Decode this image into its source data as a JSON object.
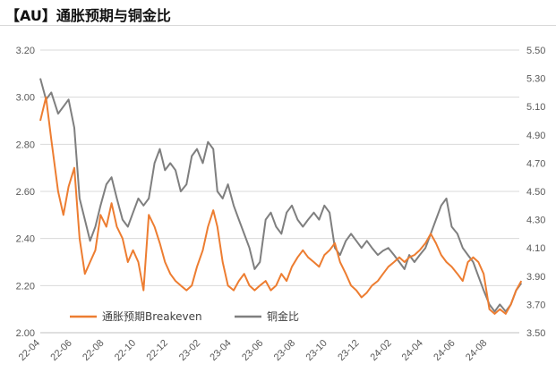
{
  "title": "【AU】通胀预期与铜金比",
  "chart_data": {
    "type": "line",
    "title": "【AU】通胀预期与铜金比",
    "xlabel": "",
    "ylabel_left": "",
    "ylabel_right": "",
    "x_ticks": [
      "22-04",
      "22-06",
      "22-08",
      "22-10",
      "22-12",
      "23-02",
      "23-04",
      "23-06",
      "23-08",
      "23-10",
      "23-12",
      "24-02",
      "24-04",
      "24-06",
      "24-08"
    ],
    "x_range": [
      "2022-04",
      "2024-10"
    ],
    "y_left_ticks": [
      "2.00",
      "2.20",
      "2.40",
      "2.60",
      "2.80",
      "3.00",
      "3.20"
    ],
    "y_left_range": [
      2.0,
      3.2
    ],
    "y_right_ticks": [
      "3.50",
      "3.70",
      "3.90",
      "4.10",
      "4.30",
      "4.50",
      "4.70",
      "4.90",
      "5.10",
      "5.30",
      "5.50"
    ],
    "y_right_range": [
      3.5,
      5.5
    ],
    "grid": "horizontal",
    "legend_position": "bottom-left",
    "series": [
      {
        "name": "通胀预期Breakeven",
        "axis": "left",
        "color": "#ed7d31",
        "points": [
          [
            "2022-04-01",
            2.9
          ],
          [
            "2022-04-12",
            3.0
          ],
          [
            "2022-04-22",
            2.82
          ],
          [
            "2022-05-05",
            2.6
          ],
          [
            "2022-05-15",
            2.5
          ],
          [
            "2022-05-25",
            2.62
          ],
          [
            "2022-06-05",
            2.7
          ],
          [
            "2022-06-15",
            2.4
          ],
          [
            "2022-06-25",
            2.25
          ],
          [
            "2022-07-05",
            2.3
          ],
          [
            "2022-07-15",
            2.35
          ],
          [
            "2022-07-25",
            2.5
          ],
          [
            "2022-08-05",
            2.45
          ],
          [
            "2022-08-15",
            2.55
          ],
          [
            "2022-08-25",
            2.45
          ],
          [
            "2022-09-05",
            2.4
          ],
          [
            "2022-09-15",
            2.3
          ],
          [
            "2022-09-25",
            2.35
          ],
          [
            "2022-10-05",
            2.3
          ],
          [
            "2022-10-15",
            2.18
          ],
          [
            "2022-10-25",
            2.5
          ],
          [
            "2022-11-05",
            2.45
          ],
          [
            "2022-11-15",
            2.38
          ],
          [
            "2022-11-25",
            2.3
          ],
          [
            "2022-12-05",
            2.25
          ],
          [
            "2022-12-15",
            2.22
          ],
          [
            "2022-12-25",
            2.2
          ],
          [
            "2023-01-05",
            2.18
          ],
          [
            "2023-01-15",
            2.2
          ],
          [
            "2023-01-25",
            2.28
          ],
          [
            "2023-02-05",
            2.35
          ],
          [
            "2023-02-15",
            2.45
          ],
          [
            "2023-02-25",
            2.52
          ],
          [
            "2023-03-05",
            2.45
          ],
          [
            "2023-03-15",
            2.3
          ],
          [
            "2023-03-25",
            2.2
          ],
          [
            "2023-04-05",
            2.18
          ],
          [
            "2023-04-15",
            2.22
          ],
          [
            "2023-04-25",
            2.25
          ],
          [
            "2023-05-05",
            2.2
          ],
          [
            "2023-05-15",
            2.18
          ],
          [
            "2023-05-25",
            2.2
          ],
          [
            "2023-06-05",
            2.22
          ],
          [
            "2023-06-15",
            2.18
          ],
          [
            "2023-06-25",
            2.2
          ],
          [
            "2023-07-05",
            2.25
          ],
          [
            "2023-07-15",
            2.22
          ],
          [
            "2023-07-25",
            2.28
          ],
          [
            "2023-08-05",
            2.32
          ],
          [
            "2023-08-15",
            2.35
          ],
          [
            "2023-08-25",
            2.32
          ],
          [
            "2023-09-05",
            2.3
          ],
          [
            "2023-09-15",
            2.28
          ],
          [
            "2023-09-25",
            2.33
          ],
          [
            "2023-10-05",
            2.35
          ],
          [
            "2023-10-15",
            2.38
          ],
          [
            "2023-10-25",
            2.3
          ],
          [
            "2023-11-05",
            2.25
          ],
          [
            "2023-11-15",
            2.2
          ],
          [
            "2023-11-25",
            2.18
          ],
          [
            "2023-12-05",
            2.15
          ],
          [
            "2023-12-15",
            2.17
          ],
          [
            "2023-12-25",
            2.2
          ],
          [
            "2024-01-05",
            2.22
          ],
          [
            "2024-01-15",
            2.25
          ],
          [
            "2024-01-25",
            2.28
          ],
          [
            "2024-02-05",
            2.3
          ],
          [
            "2024-02-15",
            2.32
          ],
          [
            "2024-02-25",
            2.3
          ],
          [
            "2024-03-05",
            2.32
          ],
          [
            "2024-03-15",
            2.33
          ],
          [
            "2024-03-25",
            2.35
          ],
          [
            "2024-04-05",
            2.38
          ],
          [
            "2024-04-15",
            2.42
          ],
          [
            "2024-04-25",
            2.38
          ],
          [
            "2024-05-05",
            2.33
          ],
          [
            "2024-05-15",
            2.3
          ],
          [
            "2024-05-25",
            2.28
          ],
          [
            "2024-06-05",
            2.25
          ],
          [
            "2024-06-15",
            2.22
          ],
          [
            "2024-06-25",
            2.3
          ],
          [
            "2024-07-05",
            2.32
          ],
          [
            "2024-07-15",
            2.3
          ],
          [
            "2024-07-25",
            2.25
          ],
          [
            "2024-08-05",
            2.1
          ],
          [
            "2024-08-15",
            2.08
          ],
          [
            "2024-08-25",
            2.1
          ],
          [
            "2024-09-05",
            2.08
          ],
          [
            "2024-09-15",
            2.12
          ],
          [
            "2024-09-25",
            2.18
          ],
          [
            "2024-10-05",
            2.22
          ]
        ]
      },
      {
        "name": "铜金比",
        "axis": "right",
        "color": "#7f7f7f",
        "points": [
          [
            "2022-04-01",
            5.3
          ],
          [
            "2022-04-12",
            5.15
          ],
          [
            "2022-04-22",
            5.2
          ],
          [
            "2022-05-05",
            5.05
          ],
          [
            "2022-05-15",
            5.1
          ],
          [
            "2022-05-25",
            5.15
          ],
          [
            "2022-06-05",
            4.95
          ],
          [
            "2022-06-15",
            4.45
          ],
          [
            "2022-06-25",
            4.3
          ],
          [
            "2022-07-05",
            4.15
          ],
          [
            "2022-07-15",
            4.25
          ],
          [
            "2022-07-25",
            4.4
          ],
          [
            "2022-08-05",
            4.55
          ],
          [
            "2022-08-15",
            4.6
          ],
          [
            "2022-08-25",
            4.45
          ],
          [
            "2022-09-05",
            4.3
          ],
          [
            "2022-09-15",
            4.25
          ],
          [
            "2022-09-25",
            4.35
          ],
          [
            "2022-10-05",
            4.45
          ],
          [
            "2022-10-15",
            4.4
          ],
          [
            "2022-10-25",
            4.45
          ],
          [
            "2022-11-05",
            4.7
          ],
          [
            "2022-11-15",
            4.8
          ],
          [
            "2022-11-25",
            4.65
          ],
          [
            "2022-12-05",
            4.7
          ],
          [
            "2022-12-15",
            4.65
          ],
          [
            "2022-12-25",
            4.5
          ],
          [
            "2023-01-05",
            4.55
          ],
          [
            "2023-01-15",
            4.75
          ],
          [
            "2023-01-25",
            4.8
          ],
          [
            "2023-02-05",
            4.7
          ],
          [
            "2023-02-15",
            4.85
          ],
          [
            "2023-02-25",
            4.8
          ],
          [
            "2023-03-05",
            4.5
          ],
          [
            "2023-03-15",
            4.45
          ],
          [
            "2023-03-25",
            4.55
          ],
          [
            "2023-04-05",
            4.4
          ],
          [
            "2023-04-15",
            4.3
          ],
          [
            "2023-04-25",
            4.2
          ],
          [
            "2023-05-05",
            4.1
          ],
          [
            "2023-05-15",
            3.95
          ],
          [
            "2023-05-25",
            4.0
          ],
          [
            "2023-06-05",
            4.3
          ],
          [
            "2023-06-15",
            4.35
          ],
          [
            "2023-06-25",
            4.25
          ],
          [
            "2023-07-05",
            4.2
          ],
          [
            "2023-07-15",
            4.35
          ],
          [
            "2023-07-25",
            4.4
          ],
          [
            "2023-08-05",
            4.3
          ],
          [
            "2023-08-15",
            4.25
          ],
          [
            "2023-08-25",
            4.3
          ],
          [
            "2023-09-05",
            4.35
          ],
          [
            "2023-09-15",
            4.3
          ],
          [
            "2023-09-25",
            4.4
          ],
          [
            "2023-10-05",
            4.35
          ],
          [
            "2023-10-15",
            4.1
          ],
          [
            "2023-10-25",
            4.05
          ],
          [
            "2023-11-05",
            4.15
          ],
          [
            "2023-11-15",
            4.2
          ],
          [
            "2023-11-25",
            4.15
          ],
          [
            "2023-12-05",
            4.1
          ],
          [
            "2023-12-15",
            4.15
          ],
          [
            "2023-12-25",
            4.1
          ],
          [
            "2024-01-05",
            4.05
          ],
          [
            "2024-01-15",
            4.08
          ],
          [
            "2024-01-25",
            4.1
          ],
          [
            "2024-02-05",
            4.05
          ],
          [
            "2024-02-15",
            4.0
          ],
          [
            "2024-02-25",
            3.95
          ],
          [
            "2024-03-05",
            4.05
          ],
          [
            "2024-03-15",
            4.0
          ],
          [
            "2024-03-25",
            4.05
          ],
          [
            "2024-04-05",
            4.1
          ],
          [
            "2024-04-15",
            4.2
          ],
          [
            "2024-04-25",
            4.3
          ],
          [
            "2024-05-05",
            4.4
          ],
          [
            "2024-05-15",
            4.45
          ],
          [
            "2024-05-25",
            4.25
          ],
          [
            "2024-06-05",
            4.2
          ],
          [
            "2024-06-15",
            4.1
          ],
          [
            "2024-06-25",
            4.05
          ],
          [
            "2024-07-05",
            4.0
          ],
          [
            "2024-07-15",
            3.9
          ],
          [
            "2024-07-25",
            3.8
          ],
          [
            "2024-08-05",
            3.7
          ],
          [
            "2024-08-15",
            3.65
          ],
          [
            "2024-08-25",
            3.7
          ],
          [
            "2024-09-05",
            3.65
          ],
          [
            "2024-09-15",
            3.7
          ],
          [
            "2024-09-25",
            3.8
          ],
          [
            "2024-10-05",
            3.85
          ]
        ]
      }
    ]
  }
}
